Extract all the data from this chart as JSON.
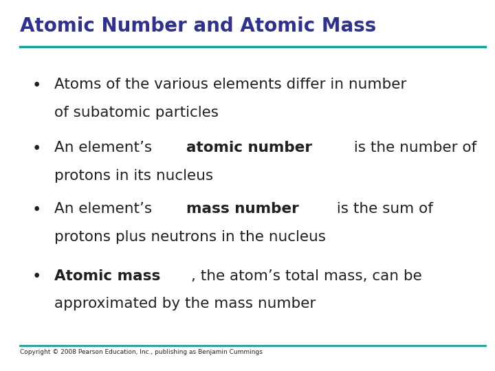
{
  "title": "Atomic Number and Atomic Mass",
  "title_color": "#2E3192",
  "title_fontsize": 20,
  "background_color": "#FFFFFF",
  "line_color": "#00A99D",
  "bullet_points": [
    {
      "lines": [
        {
          "text_parts": [
            {
              "text": "Atoms of the various elements differ in number",
              "bold": false
            }
          ]
        },
        {
          "text_parts": [
            {
              "text": "of subatomic particles",
              "bold": false
            }
          ]
        }
      ]
    },
    {
      "lines": [
        {
          "text_parts": [
            {
              "text": "An element’s ",
              "bold": false
            },
            {
              "text": "atomic number",
              "bold": true
            },
            {
              "text": " is the number of",
              "bold": false
            }
          ]
        },
        {
          "text_parts": [
            {
              "text": "protons in its nucleus",
              "bold": false
            }
          ]
        }
      ]
    },
    {
      "lines": [
        {
          "text_parts": [
            {
              "text": "An element’s ",
              "bold": false
            },
            {
              "text": "mass number",
              "bold": true
            },
            {
              "text": " is the sum of",
              "bold": false
            }
          ]
        },
        {
          "text_parts": [
            {
              "text": "protons plus neutrons in the nucleus",
              "bold": false
            }
          ]
        }
      ]
    },
    {
      "lines": [
        {
          "text_parts": [
            {
              "text": "Atomic mass",
              "bold": true
            },
            {
              "text": ", the atom’s total mass, can be",
              "bold": false
            }
          ]
        },
        {
          "text_parts": [
            {
              "text": "approximated by the mass number",
              "bold": false
            }
          ]
        }
      ]
    }
  ],
  "copyright": "Copyright © 2008 Pearson Education, Inc., publishing as Benjamin Cummings",
  "text_color": "#231F20",
  "text_fontsize": 15.5,
  "bullet_color": "#231F20"
}
